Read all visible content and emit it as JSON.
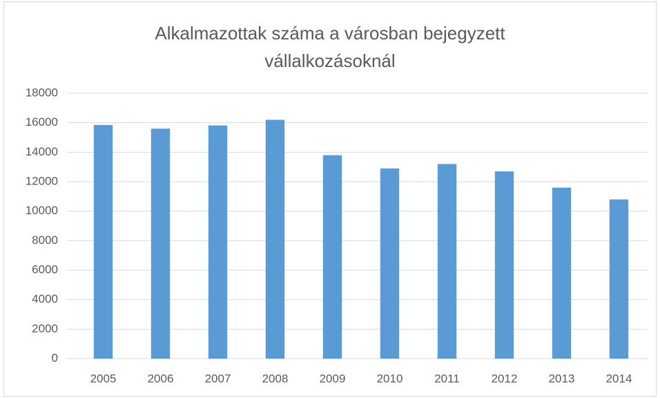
{
  "chart_data": {
    "type": "bar",
    "title": "Alkalmazottak száma a városban bejegyzett vállalkozásoknál",
    "categories": [
      "2005",
      "2006",
      "2007",
      "2008",
      "2009",
      "2010",
      "2011",
      "2012",
      "2013",
      "2014"
    ],
    "values": [
      15850,
      15600,
      15820,
      16200,
      13800,
      12900,
      13200,
      12700,
      11600,
      10800
    ],
    "color": "#5b9bd5",
    "ylim": [
      0,
      18000
    ],
    "yticks": [
      0,
      2000,
      4000,
      6000,
      8000,
      10000,
      12000,
      14000,
      16000,
      18000
    ],
    "grid": true
  }
}
